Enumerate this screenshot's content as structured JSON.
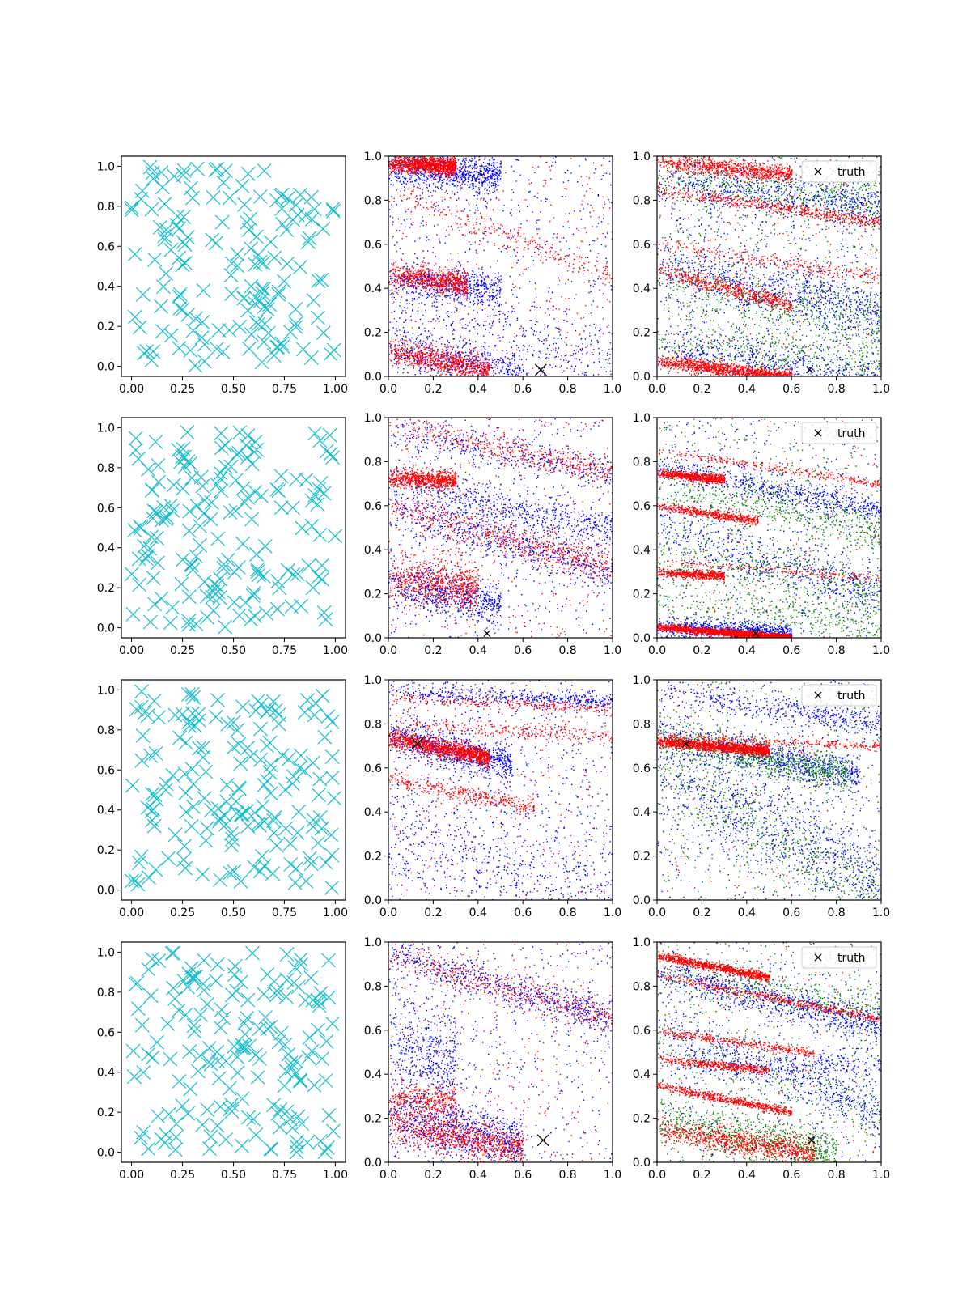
{
  "colors": {
    "cyan": "#17becf",
    "blue": "#0000ff",
    "red": "#ff0000",
    "green": "#008000",
    "black": "#000000"
  },
  "chart_data": [
    {
      "type": "scatter",
      "row": 1,
      "col": 1,
      "xlim": [
        -0.05,
        1.05
      ],
      "ylim": [
        -0.05,
        1.05
      ],
      "xticks": [
        "0.00",
        "0.25",
        "0.50",
        "0.75",
        "1.00"
      ],
      "yticks": [
        "0.0",
        "0.2",
        "0.4",
        "0.6",
        "0.8",
        "1.0"
      ],
      "series": [
        {
          "kind": "candidates",
          "color": "cyan",
          "marker": "x",
          "count": 160
        }
      ]
    },
    {
      "type": "scatter",
      "row": 1,
      "col": 2,
      "xlim": [
        0,
        1
      ],
      "ylim": [
        0,
        1
      ],
      "xticks": [
        "0.0",
        "0.2",
        "0.4",
        "0.6",
        "0.8",
        "1.0"
      ],
      "yticks": [
        "0.0",
        "0.2",
        "0.4",
        "0.6",
        "0.8",
        "1.0"
      ],
      "series": [
        {
          "kind": "samples",
          "color": "blue",
          "bands": [
            [
              0.95,
              -0.08,
              0.04,
              0.5,
              0.9
            ],
            [
              0.45,
              -0.12,
              0.04,
              0.5,
              0.6
            ],
            [
              0.12,
              -0.18,
              0.05,
              0.6,
              0.7
            ],
            [
              0.35,
              -0.3,
              0.08,
              1.0,
              0.3
            ]
          ],
          "uniform": 600
        },
        {
          "kind": "samples",
          "color": "red",
          "bands": [
            [
              0.97,
              -0.05,
              0.02,
              0.3,
              1.2
            ],
            [
              0.47,
              -0.15,
              0.03,
              0.35,
              0.8
            ],
            [
              0.12,
              -0.2,
              0.03,
              0.45,
              0.9
            ],
            [
              0.85,
              -0.4,
              0.03,
              1.0,
              0.3
            ]
          ],
          "uniform": 300
        }
      ],
      "truth": {
        "x": 0.68,
        "y": 0.03,
        "size": "large"
      }
    },
    {
      "type": "scatter",
      "row": 1,
      "col": 3,
      "xlim": [
        0,
        1
      ],
      "ylim": [
        0,
        1
      ],
      "xticks": [
        "0.0",
        "0.2",
        "0.4",
        "0.6",
        "0.8",
        "1.0"
      ],
      "yticks": [
        "0.0",
        "0.2",
        "0.4",
        "0.6",
        "0.8",
        "1.0"
      ],
      "series": [
        {
          "kind": "samples",
          "color": "green",
          "bands": [
            [
              0.9,
              -0.1,
              0.06,
              1.0,
              0.6
            ],
            [
              0.45,
              -0.2,
              0.07,
              1.0,
              0.6
            ],
            [
              0.15,
              -0.1,
              0.06,
              1.0,
              0.5
            ]
          ],
          "uniform": 500
        },
        {
          "kind": "samples",
          "color": "blue",
          "bands": [
            [
              0.88,
              -0.1,
              0.05,
              1.0,
              0.6
            ],
            [
              0.5,
              -0.2,
              0.06,
              1.0,
              0.7
            ],
            [
              0.12,
              -0.15,
              0.05,
              1.0,
              0.6
            ]
          ],
          "uniform": 600
        },
        {
          "kind": "samples",
          "color": "red",
          "bands": [
            [
              0.98,
              -0.1,
              0.02,
              0.6,
              0.9
            ],
            [
              0.85,
              -0.15,
              0.015,
              1.0,
              0.6
            ],
            [
              0.48,
              -0.25,
              0.02,
              0.6,
              0.6
            ],
            [
              0.07,
              -0.12,
              0.015,
              0.6,
              1.3
            ],
            [
              0.6,
              -0.15,
              0.02,
              1.0,
              0.3
            ]
          ],
          "uniform": 200
        }
      ],
      "truth": {
        "x": 0.68,
        "y": 0.03,
        "size": "small"
      },
      "legend": {
        "label": "truth",
        "placement": "upper right"
      }
    },
    {
      "type": "scatter",
      "row": 2,
      "col": 1,
      "xlim": [
        -0.05,
        1.05
      ],
      "ylim": [
        -0.05,
        1.05
      ],
      "xticks": [
        "0.00",
        "0.25",
        "0.50",
        "0.75",
        "1.00"
      ],
      "yticks": [
        "0.0",
        "0.2",
        "0.4",
        "0.6",
        "0.8",
        "1.0"
      ],
      "series": [
        {
          "kind": "candidates",
          "color": "cyan",
          "marker": "x",
          "count": 170
        }
      ]
    },
    {
      "type": "scatter",
      "row": 2,
      "col": 2,
      "xlim": [
        0,
        1
      ],
      "ylim": [
        0,
        1
      ],
      "xticks": [
        "0.0",
        "0.2",
        "0.4",
        "0.6",
        "0.8",
        "1.0"
      ],
      "yticks": [
        "0.0",
        "0.2",
        "0.4",
        "0.6",
        "0.8",
        "1.0"
      ],
      "series": [
        {
          "kind": "samples",
          "color": "blue",
          "bands": [
            [
              0.7,
              -0.2,
              0.04,
              1.0,
              0.6
            ],
            [
              0.6,
              -0.3,
              0.05,
              1.0,
              0.7
            ],
            [
              0.25,
              -0.2,
              0.05,
              0.5,
              0.7
            ],
            [
              0.95,
              -0.2,
              0.04,
              1.0,
              0.4
            ]
          ],
          "uniform": 500
        },
        {
          "kind": "samples",
          "color": "red",
          "bands": [
            [
              0.73,
              -0.05,
              0.02,
              0.3,
              0.8
            ],
            [
              0.97,
              -0.22,
              0.03,
              1.0,
              0.5
            ],
            [
              0.6,
              -0.28,
              0.04,
              1.0,
              0.7
            ],
            [
              0.27,
              -0.1,
              0.05,
              0.4,
              0.8
            ]
          ],
          "uniform": 350
        }
      ],
      "truth": {
        "x": 0.44,
        "y": 0.02,
        "size": "small"
      }
    },
    {
      "type": "scatter",
      "row": 2,
      "col": 3,
      "xlim": [
        0,
        1
      ],
      "ylim": [
        0,
        1
      ],
      "xticks": [
        "0.0",
        "0.2",
        "0.4",
        "0.6",
        "0.8",
        "1.0"
      ],
      "yticks": [
        "0.0",
        "0.2",
        "0.4",
        "0.6",
        "0.8",
        "1.0"
      ],
      "series": [
        {
          "kind": "samples",
          "color": "green",
          "bands": [
            [
              0.7,
              -0.2,
              0.06,
              1.0,
              0.6
            ],
            [
              0.4,
              -0.2,
              0.07,
              1.0,
              0.5
            ],
            [
              0.15,
              -0.1,
              0.06,
              1.0,
              0.4
            ]
          ],
          "uniform": 500
        },
        {
          "kind": "samples",
          "color": "blue",
          "bands": [
            [
              0.78,
              -0.2,
              0.03,
              1.0,
              0.6
            ],
            [
              0.5,
              -0.3,
              0.06,
              1.0,
              0.5
            ],
            [
              0.05,
              -0.05,
              0.02,
              0.6,
              0.9
            ]
          ],
          "uniform": 400
        },
        {
          "kind": "samples",
          "color": "red",
          "bands": [
            [
              0.75,
              -0.1,
              0.01,
              0.3,
              0.8
            ],
            [
              0.6,
              -0.15,
              0.01,
              0.45,
              0.6
            ],
            [
              0.3,
              -0.06,
              0.01,
              0.3,
              0.6
            ],
            [
              0.05,
              -0.08,
              0.008,
              0.6,
              2.2
            ],
            [
              0.85,
              -0.15,
              0.01,
              1.0,
              0.3
            ],
            [
              0.35,
              -0.08,
              0.01,
              1.0,
              0.2
            ]
          ],
          "uniform": 150
        }
      ],
      "truth": {
        "x": 0.44,
        "y": 0.02,
        "size": "small"
      },
      "legend": {
        "label": "truth",
        "placement": "upper right"
      }
    },
    {
      "type": "scatter",
      "row": 3,
      "col": 1,
      "xlim": [
        -0.05,
        1.05
      ],
      "ylim": [
        -0.05,
        1.05
      ],
      "xticks": [
        "0.00",
        "0.25",
        "0.50",
        "0.75",
        "1.00"
      ],
      "yticks": [
        "0.0",
        "0.2",
        "0.4",
        "0.6",
        "0.8",
        "1.0"
      ],
      "series": [
        {
          "kind": "candidates",
          "color": "cyan",
          "marker": "x",
          "count": 170
        }
      ]
    },
    {
      "type": "scatter",
      "row": 3,
      "col": 2,
      "xlim": [
        0,
        1
      ],
      "ylim": [
        0,
        1
      ],
      "xticks": [
        "0.0",
        "0.2",
        "0.4",
        "0.6",
        "0.8",
        "1.0"
      ],
      "yticks": [
        "0.0",
        "0.2",
        "0.4",
        "0.6",
        "0.8",
        "1.0"
      ],
      "series": [
        {
          "kind": "samples",
          "color": "blue",
          "bands": [
            [
              0.75,
              -0.25,
              0.04,
              0.55,
              0.9
            ],
            [
              0.95,
              -0.05,
              0.02,
              1.0,
              0.5
            ],
            [
              0.3,
              -0.3,
              0.12,
              1.0,
              0.5
            ]
          ],
          "uniform": 700
        },
        {
          "kind": "samples",
          "color": "red",
          "bands": [
            [
              0.74,
              -0.2,
              0.02,
              0.45,
              1.4
            ],
            [
              0.55,
              -0.2,
              0.02,
              0.65,
              0.4
            ],
            [
              0.8,
              -0.05,
              0.02,
              1.0,
              0.3
            ],
            [
              0.92,
              -0.05,
              0.015,
              1.0,
              0.3
            ]
          ],
          "uniform": 250
        }
      ],
      "truth": {
        "x": 0.13,
        "y": 0.71,
        "size": "large"
      }
    },
    {
      "type": "scatter",
      "row": 3,
      "col": 3,
      "xlim": [
        0,
        1
      ],
      "ylim": [
        0,
        1
      ],
      "xticks": [
        "0.0",
        "0.2",
        "0.4",
        "0.6",
        "0.8",
        "1.0"
      ],
      "yticks": [
        "0.0",
        "0.2",
        "0.4",
        "0.6",
        "0.8",
        "1.0"
      ],
      "series": [
        {
          "kind": "samples",
          "color": "blue",
          "bands": [
            [
              0.75,
              -0.2,
              0.04,
              0.9,
              0.9
            ],
            [
              0.95,
              -0.15,
              0.03,
              1.0,
              0.5
            ],
            [
              0.6,
              -0.5,
              0.1,
              1.0,
              0.8
            ]
          ],
          "uniform": 400
        },
        {
          "kind": "samples",
          "color": "green",
          "bands": [
            [
              0.74,
              -0.2,
              0.04,
              0.85,
              0.9
            ],
            [
              0.6,
              -0.6,
              0.1,
              1.0,
              0.6
            ]
          ],
          "uniform": 450
        },
        {
          "kind": "samples",
          "color": "red",
          "bands": [
            [
              0.72,
              -0.08,
              0.012,
              0.5,
              1.6
            ],
            [
              0.75,
              -0.05,
              0.01,
              1.0,
              0.3
            ]
          ],
          "uniform": 80
        }
      ],
      "truth": {
        "x": 0.13,
        "y": 0.71,
        "size": "small"
      },
      "legend": {
        "label": "truth",
        "placement": "upper right"
      }
    },
    {
      "type": "scatter",
      "row": 4,
      "col": 1,
      "xlim": [
        -0.05,
        1.05
      ],
      "ylim": [
        -0.05,
        1.05
      ],
      "xticks": [
        "0.00",
        "0.25",
        "0.50",
        "0.75",
        "1.00"
      ],
      "yticks": [
        "0.0",
        "0.2",
        "0.4",
        "0.6",
        "0.8",
        "1.0"
      ],
      "series": [
        {
          "kind": "candidates",
          "color": "cyan",
          "marker": "x",
          "count": 170
        }
      ]
    },
    {
      "type": "scatter",
      "row": 4,
      "col": 2,
      "xlim": [
        0,
        1
      ],
      "ylim": [
        0,
        1
      ],
      "xticks": [
        "0.0",
        "0.2",
        "0.4",
        "0.6",
        "0.8",
        "1.0"
      ],
      "yticks": [
        "0.0",
        "0.2",
        "0.4",
        "0.6",
        "0.8",
        "1.0"
      ],
      "series": [
        {
          "kind": "samples",
          "color": "blue",
          "bands": [
            [
              0.95,
              -0.3,
              0.04,
              1.0,
              0.7
            ],
            [
              0.2,
              -0.2,
              0.06,
              0.6,
              0.9
            ],
            [
              0.55,
              -0.3,
              0.12,
              0.3,
              0.5
            ]
          ],
          "uniform": 500
        },
        {
          "kind": "samples",
          "color": "red",
          "bands": [
            [
              0.94,
              -0.28,
              0.04,
              1.0,
              0.5
            ],
            [
              0.18,
              -0.2,
              0.04,
              0.6,
              1.0
            ],
            [
              0.3,
              -0.1,
              0.04,
              0.3,
              0.4
            ]
          ],
          "uniform": 300
        }
      ],
      "truth": {
        "x": 0.69,
        "y": 0.1,
        "size": "large"
      }
    },
    {
      "type": "scatter",
      "row": 4,
      "col": 3,
      "xlim": [
        0,
        1
      ],
      "ylim": [
        0,
        1
      ],
      "xticks": [
        "0.0",
        "0.2",
        "0.4",
        "0.6",
        "0.8",
        "1.0"
      ],
      "yticks": [
        "0.0",
        "0.2",
        "0.4",
        "0.6",
        "0.8",
        "1.0"
      ],
      "series": [
        {
          "kind": "samples",
          "color": "green",
          "bands": [
            [
              0.88,
              -0.2,
              0.05,
              1.0,
              0.5
            ],
            [
              0.2,
              -0.2,
              0.05,
              0.8,
              0.9
            ],
            [
              0.55,
              -0.3,
              0.08,
              1.0,
              0.3
            ]
          ],
          "uniform": 400
        },
        {
          "kind": "samples",
          "color": "blue",
          "bands": [
            [
              0.87,
              -0.25,
              0.04,
              1.0,
              0.8
            ],
            [
              0.62,
              -0.4,
              0.05,
              1.0,
              0.5
            ],
            [
              0.45,
              0,
              0.03,
              1.0,
              0.3
            ]
          ],
          "uniform": 400
        },
        {
          "kind": "samples",
          "color": "red",
          "bands": [
            [
              0.94,
              -0.2,
              0.01,
              0.5,
              1.0
            ],
            [
              0.85,
              -0.2,
              0.01,
              1.0,
              0.5
            ],
            [
              0.6,
              -0.15,
              0.01,
              0.7,
              0.4
            ],
            [
              0.47,
              -0.1,
              0.01,
              0.5,
              0.5
            ],
            [
              0.35,
              -0.2,
              0.01,
              0.6,
              0.7
            ],
            [
              0.15,
              -0.15,
              0.03,
              0.7,
              1.0
            ]
          ],
          "uniform": 150
        }
      ],
      "truth": {
        "x": 0.69,
        "y": 0.1,
        "size": "small"
      },
      "legend": {
        "label": "truth",
        "placement": "upper right"
      }
    }
  ]
}
